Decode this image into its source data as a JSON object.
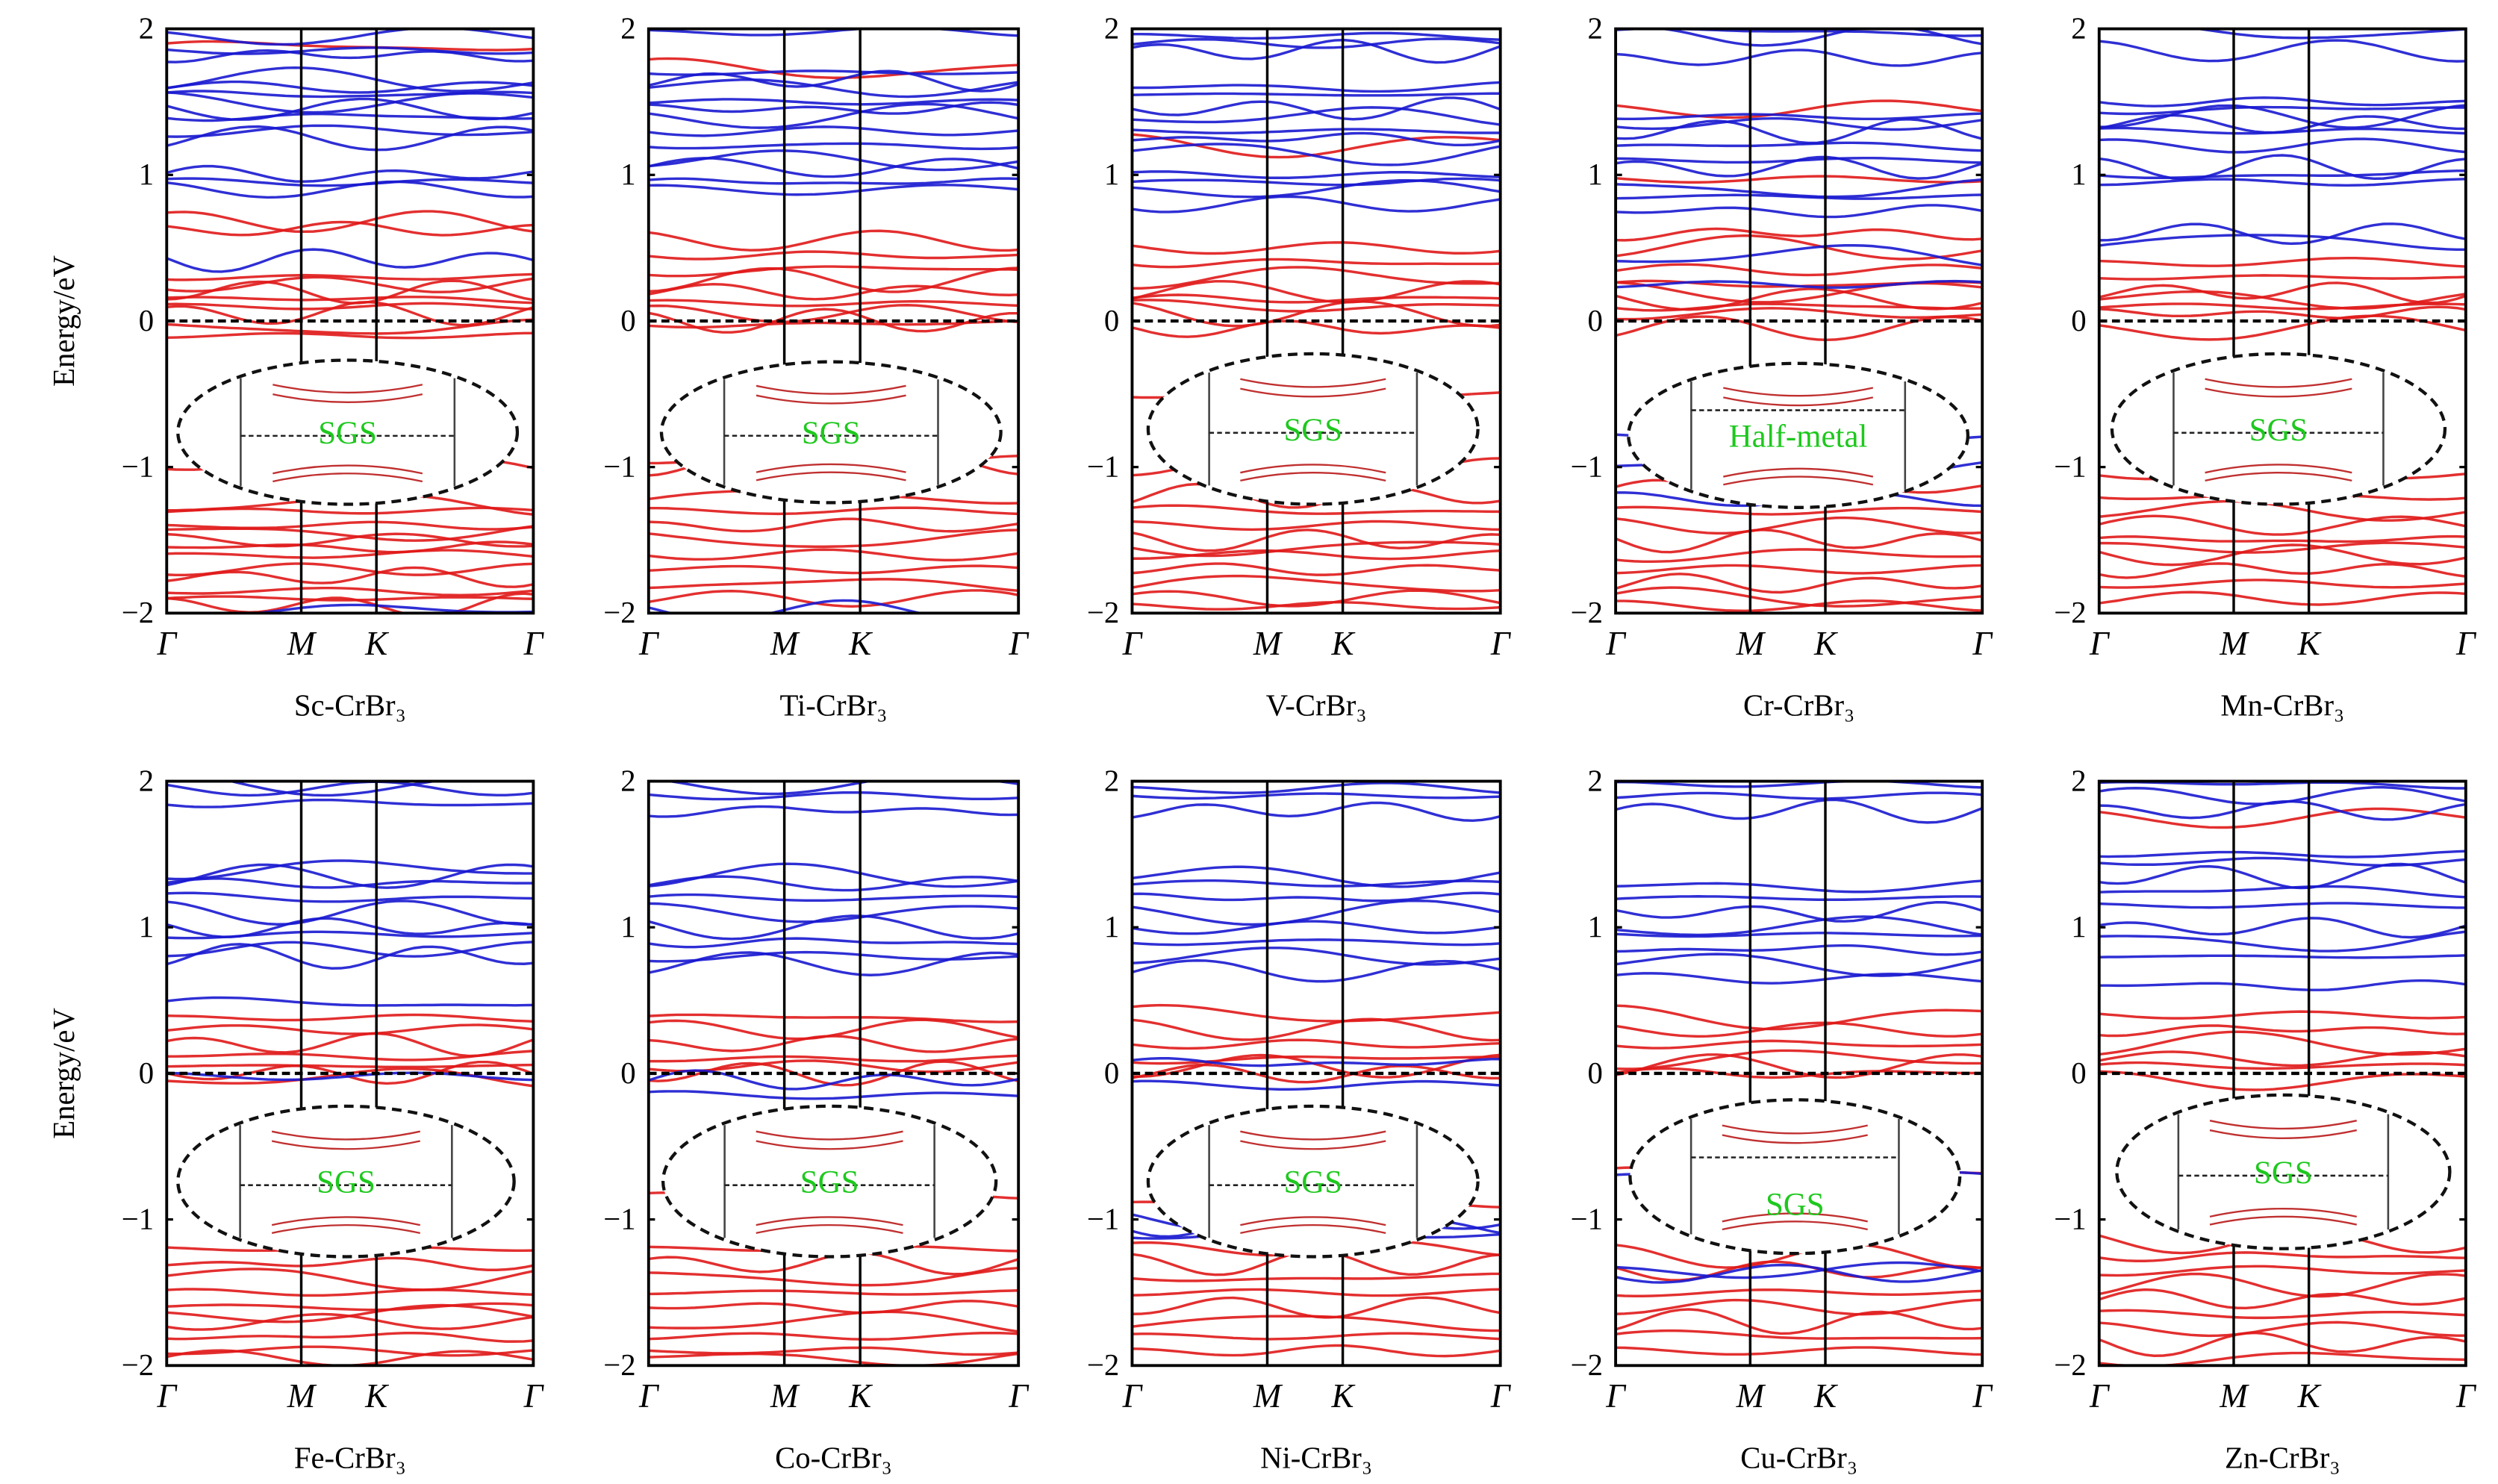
{
  "chart_data": {
    "type": "line",
    "layout": "2x5 grid of band-structure panels",
    "ylabel": "Energy/eV",
    "ylim": [
      -2,
      2
    ],
    "yticks": [
      "2",
      "1",
      "0",
      "−1",
      "−2"
    ],
    "ytick_values": [
      2,
      1,
      0,
      -1,
      -2
    ],
    "kpath": [
      "Γ",
      "M",
      "K",
      "Γ"
    ],
    "fermi_level": 0,
    "colors": {
      "spin_up": "#e01818",
      "spin_down": "#1818d0",
      "annotation": "#1ec81e",
      "fermi": "#000000"
    },
    "panels": [
      {
        "label": "Sc-CrBr₃",
        "annotation": "SGS",
        "spin_up": [
          1.88,
          0.68,
          0.63,
          0.3,
          0.25,
          0.2,
          0.15,
          0.1,
          0.05,
          -0.05,
          -0.1,
          -1.0,
          -1.25,
          -1.3,
          -1.4,
          -1.45,
          -1.5,
          -1.55,
          -1.6,
          -1.7,
          -1.75,
          -1.85,
          -1.9,
          -1.95
        ],
        "spin_down": [
          1.95,
          1.85,
          1.82,
          1.65,
          1.6,
          1.55,
          1.5,
          1.45,
          1.4,
          1.3,
          1.25,
          1.0,
          0.95,
          0.9,
          0.42,
          -1.98
        ]
      },
      {
        "label": "Ti-CrBr₃",
        "annotation": "SGS",
        "spin_up": [
          1.72,
          0.55,
          0.45,
          0.35,
          0.28,
          0.2,
          0.12,
          0.05,
          0.0,
          -0.02,
          -0.95,
          -1.0,
          -1.2,
          -1.3,
          -1.4,
          -1.5,
          -1.6,
          -1.7,
          -1.8,
          -1.9
        ],
        "spin_down": [
          1.98,
          1.7,
          1.65,
          1.6,
          1.5,
          1.45,
          1.4,
          1.3,
          1.2,
          1.1,
          1.05,
          0.95,
          0.9,
          -1.98
        ]
      },
      {
        "label": "V-CrBr₃",
        "annotation": "SGS",
        "spin_up": [
          1.2,
          0.5,
          0.4,
          0.3,
          0.2,
          0.15,
          0.1,
          0.05,
          -0.05,
          -0.5,
          -1.0,
          -1.2,
          -1.3,
          -1.4,
          -1.5,
          -1.55,
          -1.6,
          -1.7,
          -1.8,
          -1.9,
          -1.95
        ],
        "spin_down": [
          1.95,
          1.9,
          1.85,
          1.6,
          1.55,
          1.45,
          1.4,
          1.3,
          1.25,
          1.15,
          1.0,
          0.95,
          0.9,
          0.8
        ]
      },
      {
        "label": "Cr-CrBr₃",
        "annotation": "Half-metal",
        "spin_up": [
          1.45,
          0.97,
          0.6,
          0.5,
          0.35,
          0.25,
          0.2,
          0.15,
          0.1,
          0.05,
          -0.05,
          -1.15,
          -1.3,
          -1.4,
          -1.5,
          -1.6,
          -1.7,
          -1.8,
          -1.9,
          -1.95
        ],
        "spin_down": [
          1.98,
          1.95,
          1.8,
          1.4,
          1.35,
          1.3,
          1.2,
          1.1,
          1.05,
          0.9,
          0.85,
          0.75,
          0.45,
          0.25,
          -0.78,
          -1.0,
          -1.22
        ]
      },
      {
        "label": "Mn-CrBr₃",
        "annotation": "SGS",
        "spin_up": [
          0.4,
          0.3,
          0.2,
          0.15,
          0.1,
          0.05,
          -0.05,
          -1.05,
          -1.2,
          -1.3,
          -1.4,
          -1.5,
          -1.55,
          -1.6,
          -1.7,
          -1.8,
          -1.9
        ],
        "spin_down": [
          1.98,
          1.85,
          1.5,
          1.45,
          1.4,
          1.35,
          1.3,
          1.2,
          1.05,
          1.0,
          0.95,
          0.6,
          0.55
        ]
      },
      {
        "label": "Fe-CrBr₃",
        "annotation": "SGS",
        "spin_up": [
          0.38,
          0.3,
          0.2,
          0.12,
          0.05,
          0.0,
          -0.03,
          -1.2,
          -1.3,
          -1.4,
          -1.5,
          -1.6,
          -1.65,
          -1.7,
          -1.8,
          -1.9,
          -1.95
        ],
        "spin_down": [
          1.98,
          1.95,
          1.85,
          1.4,
          1.35,
          1.3,
          1.2,
          1.1,
          1.0,
          0.95,
          0.85,
          0.8,
          0.48,
          -0.02
        ]
      },
      {
        "label": "Co-CrBr₃",
        "annotation": "SGS",
        "spin_up": [
          0.38,
          0.3,
          0.2,
          0.1,
          0.05,
          0.0,
          -0.82,
          -1.2,
          -1.3,
          -1.4,
          -1.5,
          -1.6,
          -1.7,
          -1.8,
          -1.9,
          -1.95
        ],
        "spin_down": [
          1.98,
          1.9,
          1.8,
          1.35,
          1.3,
          1.2,
          1.1,
          1.0,
          0.9,
          0.8,
          0.75,
          -0.05,
          -0.15
        ]
      },
      {
        "label": "Ni-CrBr₃",
        "annotation": "SGS",
        "spin_up": [
          0.4,
          0.3,
          0.2,
          0.1,
          0.05,
          0.0,
          -0.9,
          -1.2,
          -1.3,
          -1.4,
          -1.5,
          -1.6,
          -1.7,
          -1.8,
          -1.9
        ],
        "spin_down": [
          1.95,
          1.9,
          1.8,
          1.35,
          1.3,
          1.2,
          1.1,
          1.0,
          0.9,
          0.8,
          0.7,
          0.07,
          -0.08,
          -1.0,
          -1.05,
          -1.1
        ]
      },
      {
        "label": "Cu-CrBr₃",
        "annotation": "SGS",
        "spin_up": [
          0.38,
          0.3,
          0.2,
          0.1,
          0.05,
          0.0,
          -0.68,
          -1.25,
          -1.35,
          -1.5,
          -1.6,
          -1.7,
          -1.8,
          -1.9
        ],
        "spin_down": [
          1.98,
          1.9,
          1.8,
          1.28,
          1.2,
          1.1,
          1.0,
          0.95,
          0.85,
          0.75,
          0.65,
          -0.7,
          -1.35,
          -1.37
        ]
      },
      {
        "label": "Zn-CrBr₃",
        "annotation": "SGS",
        "spin_up": [
          1.75,
          0.4,
          0.3,
          0.2,
          0.1,
          0.05,
          -0.05,
          -1.15,
          -1.25,
          -1.35,
          -1.45,
          -1.55,
          -1.65,
          -1.75,
          -1.85,
          -1.95
        ],
        "spin_down": [
          1.98,
          1.9,
          1.8,
          1.5,
          1.45,
          1.35,
          1.25,
          1.15,
          1.0,
          0.9,
          0.8,
          0.6
        ]
      }
    ]
  }
}
